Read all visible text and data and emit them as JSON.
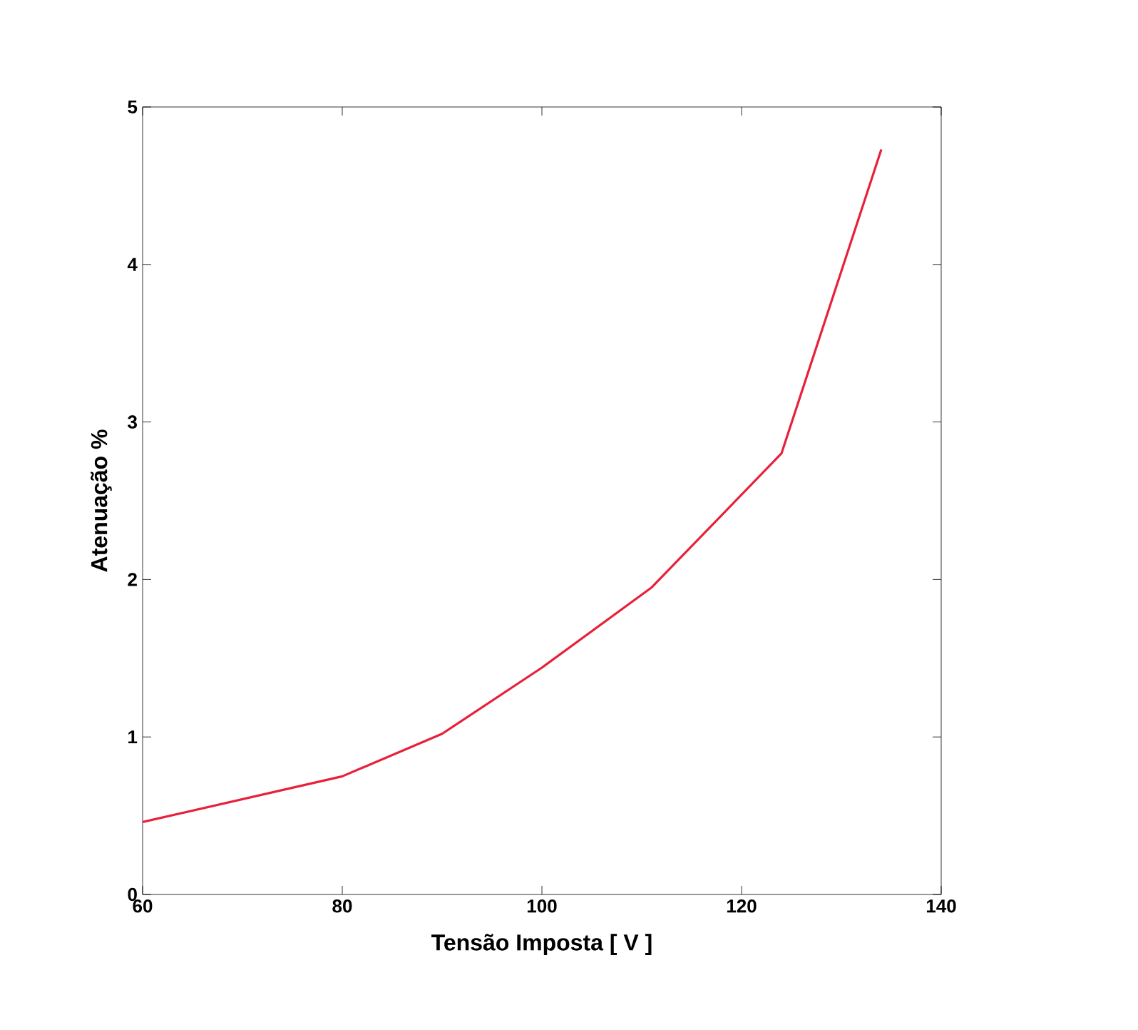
{
  "chart_data": {
    "type": "line",
    "xlabel": "Tensão  Imposta [ V ]",
    "ylabel": "Atenuação  %",
    "x": [
      60,
      80,
      90,
      100,
      111,
      124,
      134
    ],
    "series": [
      {
        "color": "#e8203a",
        "values": [
          0.46,
          0.75,
          1.02,
          1.44,
          1.95,
          2.8,
          4.73
        ]
      }
    ],
    "xlim": [
      60,
      140
    ],
    "xticks": [
      60,
      80,
      100,
      120,
      140
    ],
    "ylim": [
      0,
      5
    ],
    "yticks": [
      0,
      1,
      2,
      3,
      4,
      5
    ],
    "grid": false,
    "marker": "none",
    "line_style": "solid"
  }
}
